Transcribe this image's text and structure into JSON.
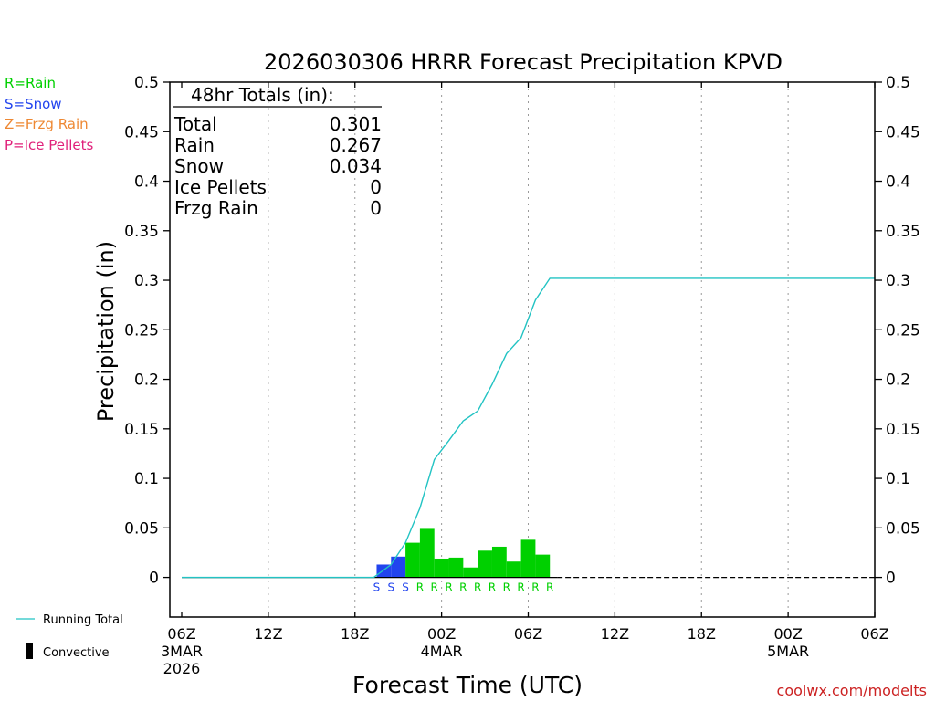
{
  "chart_data": {
    "type": "bar",
    "title": "2026030306 HRRR Forecast Precipitation KPVD",
    "xlabel": "Forecast Time (UTC)",
    "ylabel": "Precipitation (in)",
    "ylim": [
      -0.04,
      0.5
    ],
    "y_ticks": [
      "0",
      "0.05",
      "0.1",
      "0.15",
      "0.2",
      "0.25",
      "0.3",
      "0.35",
      "0.4",
      "0.45",
      "0.5"
    ],
    "y_tick_values": [
      0,
      0.05,
      0.1,
      0.15,
      0.2,
      0.25,
      0.3,
      0.35,
      0.4,
      0.45,
      0.5
    ],
    "x_range_hours": [
      0,
      48
    ],
    "x_ticks": [
      {
        "hour": 0,
        "label": "06Z",
        "date": "3MAR",
        "year": "2026"
      },
      {
        "hour": 6,
        "label": "12Z",
        "date": "",
        "year": ""
      },
      {
        "hour": 12,
        "label": "18Z",
        "date": "",
        "year": ""
      },
      {
        "hour": 18,
        "label": "00Z",
        "date": "4MAR",
        "year": ""
      },
      {
        "hour": 24,
        "label": "06Z",
        "date": "",
        "year": ""
      },
      {
        "hour": 30,
        "label": "12Z",
        "date": "",
        "year": ""
      },
      {
        "hour": 36,
        "label": "18Z",
        "date": "",
        "year": ""
      },
      {
        "hour": 42,
        "label": "00Z",
        "date": "5MAR",
        "year": ""
      },
      {
        "hour": 48,
        "label": "06Z",
        "date": "",
        "year": ""
      }
    ],
    "grid": "vertical dotted",
    "colors": {
      "rain": "#00d000",
      "snow": "#2244ee",
      "frzg_rain": "#ee8833",
      "ice_pellets": "#e0207a",
      "running_total": "#22c3c3"
    },
    "hourly_bars": [
      {
        "hour": 14,
        "value": 0.013,
        "ptype": "S"
      },
      {
        "hour": 15,
        "value": 0.021,
        "ptype": "S"
      },
      {
        "hour": 16,
        "value": 0.035,
        "ptype": "R"
      },
      {
        "hour": 17,
        "value": 0.049,
        "ptype": "R"
      },
      {
        "hour": 18,
        "value": 0.019,
        "ptype": "R"
      },
      {
        "hour": 19,
        "value": 0.02,
        "ptype": "R"
      },
      {
        "hour": 20,
        "value": 0.01,
        "ptype": "R"
      },
      {
        "hour": 21,
        "value": 0.027,
        "ptype": "R"
      },
      {
        "hour": 22,
        "value": 0.031,
        "ptype": "R"
      },
      {
        "hour": 23,
        "value": 0.016,
        "ptype": "R"
      },
      {
        "hour": 24,
        "value": 0.038,
        "ptype": "R"
      },
      {
        "hour": 25,
        "value": 0.023,
        "ptype": "R"
      }
    ],
    "ptype_labels": [
      "S",
      "S",
      "S",
      "R",
      "R",
      "R",
      "R",
      "R",
      "R",
      "R",
      "R",
      "R",
      "R"
    ],
    "ptype_label_hours": [
      13.5,
      14.5,
      15.5,
      16.5,
      17.5,
      18.5,
      19.5,
      20.5,
      21.5,
      22.5,
      23.5,
      24.5,
      25.5
    ],
    "running_total": [
      {
        "hour": 0,
        "value": 0
      },
      {
        "hour": 13.3,
        "value": 0
      },
      {
        "hour": 14.5,
        "value": 0.013
      },
      {
        "hour": 15.5,
        "value": 0.035
      },
      {
        "hour": 16.5,
        "value": 0.07
      },
      {
        "hour": 17.5,
        "value": 0.119
      },
      {
        "hour": 18.5,
        "value": 0.138
      },
      {
        "hour": 19.5,
        "value": 0.158
      },
      {
        "hour": 20.5,
        "value": 0.168
      },
      {
        "hour": 21.5,
        "value": 0.195
      },
      {
        "hour": 22.5,
        "value": 0.226
      },
      {
        "hour": 23.5,
        "value": 0.242
      },
      {
        "hour": 24.5,
        "value": 0.28
      },
      {
        "hour": 25.5,
        "value": 0.302
      },
      {
        "hour": 48,
        "value": 0.302
      }
    ],
    "zero_line_dashed_from_hour": 26,
    "totals_box": {
      "heading": "48hr Totals (in):",
      "rows": [
        {
          "label": "Total",
          "value": "0.301"
        },
        {
          "label": "Rain",
          "value": "0.267"
        },
        {
          "label": "Snow",
          "value": "0.034"
        },
        {
          "label": "Ice Pellets",
          "value": "0"
        },
        {
          "label": "Frzg Rain",
          "value": "0"
        }
      ]
    },
    "ptype_legend": [
      {
        "text": "R=Rain",
        "color": "#00d000"
      },
      {
        "text": "S=Snow",
        "color": "#2244ee"
      },
      {
        "text": "Z=Frzg Rain",
        "color": "#ee8833"
      },
      {
        "text": "P=Ice Pellets",
        "color": "#e0207a"
      }
    ],
    "line_legend": {
      "running_total": "Running Total",
      "convective": "Convective"
    },
    "credit": "coolwx.com/modelts"
  }
}
